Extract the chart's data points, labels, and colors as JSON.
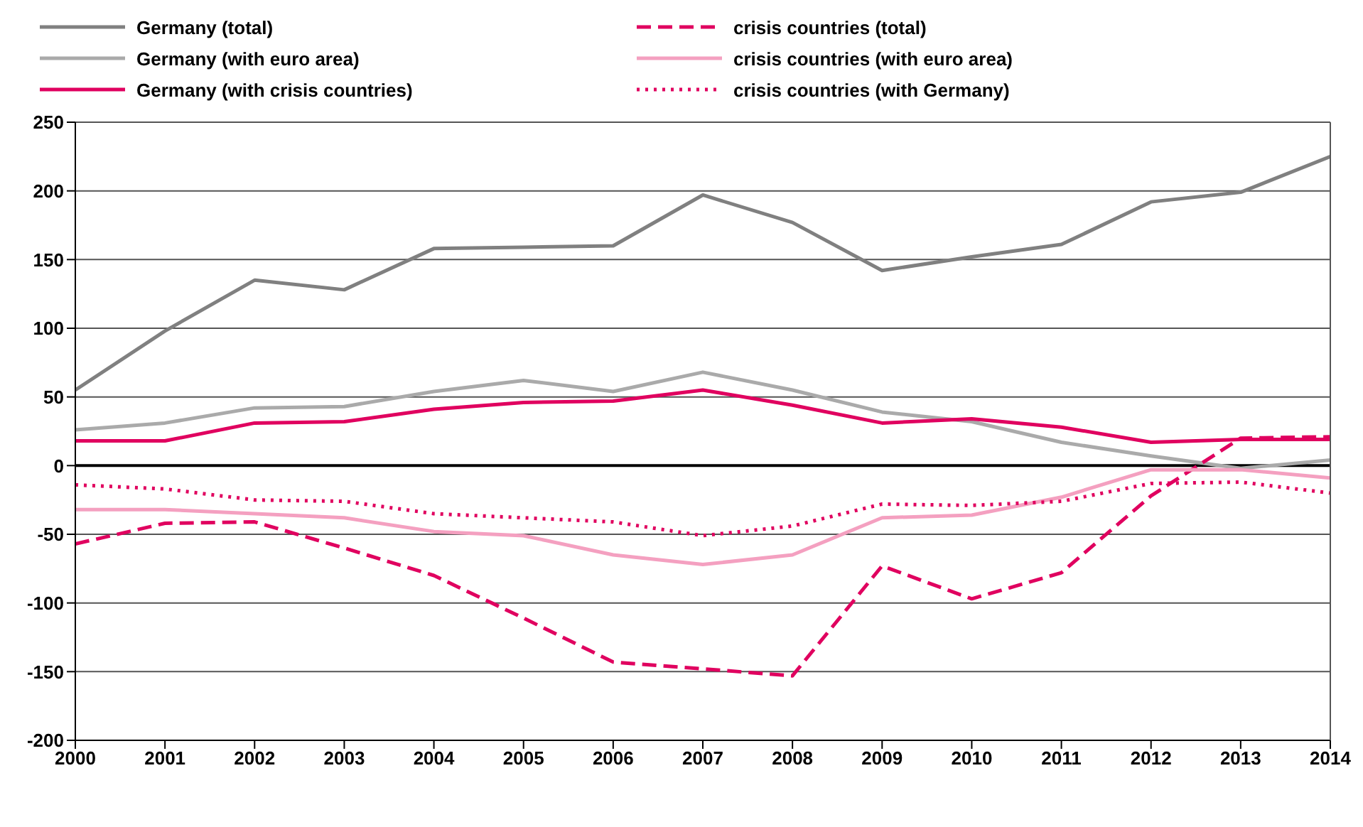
{
  "chart_data": {
    "type": "line",
    "x": [
      2000,
      2001,
      2002,
      2003,
      2004,
      2005,
      2006,
      2007,
      2008,
      2009,
      2010,
      2011,
      2012,
      2013,
      2014
    ],
    "xlim": [
      2000,
      2014
    ],
    "xticks": [
      2000,
      2001,
      2002,
      2003,
      2004,
      2005,
      2006,
      2007,
      2008,
      2009,
      2010,
      2011,
      2012,
      2013,
      2014
    ],
    "ylim": [
      -200,
      250
    ],
    "yticks": [
      -200,
      -150,
      -100,
      -50,
      0,
      50,
      100,
      150,
      200,
      250
    ],
    "grid": "y",
    "legend": "top",
    "marker": "none",
    "ref_lines": [
      {
        "axis": "y",
        "value": 0,
        "color": "#000000"
      }
    ],
    "series": [
      {
        "name": "Germany (total)",
        "color": "#808080",
        "line_style": "solid",
        "values": [
          55,
          98,
          135,
          128,
          158,
          159,
          160,
          197,
          177,
          142,
          152,
          161,
          192,
          199,
          225
        ]
      },
      {
        "name": "Germany (with euro area)",
        "color": "#aaaaaa",
        "line_style": "solid",
        "values": [
          26,
          31,
          42,
          43,
          54,
          62,
          54,
          68,
          55,
          39,
          32,
          17,
          7,
          -2,
          4
        ]
      },
      {
        "name": "Germany (with crisis countries)",
        "color": "#e0005f",
        "line_style": "solid",
        "values": [
          18,
          18,
          31,
          32,
          41,
          46,
          47,
          55,
          44,
          31,
          34,
          28,
          17,
          19,
          19
        ]
      },
      {
        "name": "crisis countries (total)",
        "color": "#e0005f",
        "line_style": "dashed",
        "values": [
          -57,
          -42,
          -41,
          -60,
          -80,
          -111,
          -143,
          -148,
          -153,
          -73,
          -97,
          -78,
          -22,
          20,
          21
        ]
      },
      {
        "name": "crisis countries (with euro area)",
        "color": "#f4a0c0",
        "line_style": "solid",
        "values": [
          -32,
          -32,
          -35,
          -38,
          -48,
          -51,
          -65,
          -72,
          -65,
          -38,
          -36,
          -23,
          -3,
          -3,
          -9
        ]
      },
      {
        "name": "crisis countries (with Germany)",
        "color": "#e0005f",
        "line_style": "dotted",
        "values": [
          -14,
          -17,
          -25,
          -26,
          -35,
          -38,
          -41,
          -51,
          -44,
          -28,
          -29,
          -26,
          -13,
          -12,
          -20
        ]
      }
    ]
  }
}
